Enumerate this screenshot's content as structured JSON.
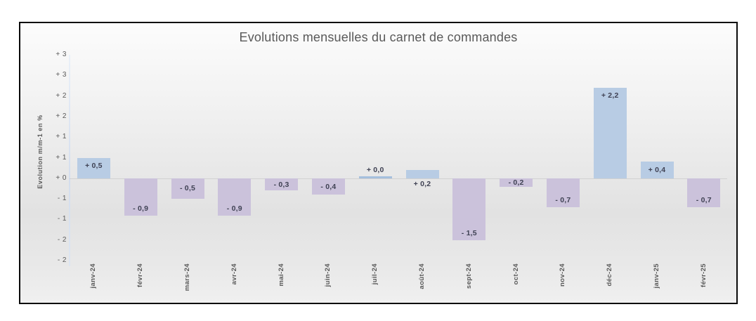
{
  "chart_data": {
    "type": "bar",
    "title": "Evolutions mensuelles du carnet de commandes",
    "xlabel": "",
    "ylabel": "Evolution m/m-1 en %",
    "ylim": [
      -2,
      3
    ],
    "ytick_step": 0.5,
    "ytick_labels": [
      "+ 3",
      "+ 3",
      "+ 2",
      "+ 2",
      "+ 1",
      "+ 1",
      "+ 0",
      "- 1",
      "- 1",
      "- 2",
      "- 2"
    ],
    "grid": false,
    "legend": "none",
    "categories": [
      "janv-24",
      "févr-24",
      "mars-24",
      "avr-24",
      "mai-24",
      "juin-24",
      "juil-24",
      "août-24",
      "sept-24",
      "oct-24",
      "nov-24",
      "déc-24",
      "janv-25",
      "févr-25"
    ],
    "values": [
      0.5,
      -0.9,
      -0.5,
      -0.9,
      -0.3,
      -0.4,
      0.0,
      0.2,
      -1.5,
      -0.2,
      -0.7,
      2.2,
      0.4,
      -0.7
    ],
    "value_labels": [
      "+ 0,5",
      "- 0,9",
      "- 0,5",
      "- 0,9",
      "- 0,3",
      "- 0,4",
      "+ 0,0",
      "+ 0,2",
      "- 1,5",
      "- 0,2",
      "- 0,7",
      "+ 2,2",
      "+ 0,4",
      "- 0,7"
    ],
    "label_placement": [
      "inside-top",
      "inside-bottom",
      "center",
      "inside-bottom",
      "center",
      "center",
      "above",
      "below",
      "inside-bottom",
      "center",
      "inside-bottom",
      "inside-top",
      "center",
      "inside-bottom"
    ],
    "colors": {
      "positive_bar": "#b8cce4",
      "negative_bar": "#cbc2db",
      "zero_bar": "#a5bfdd",
      "label_text": "#3f4153",
      "axis_text": "#595959",
      "axis_line": "#d3dded",
      "frame_border": "#0a0a0a"
    }
  }
}
